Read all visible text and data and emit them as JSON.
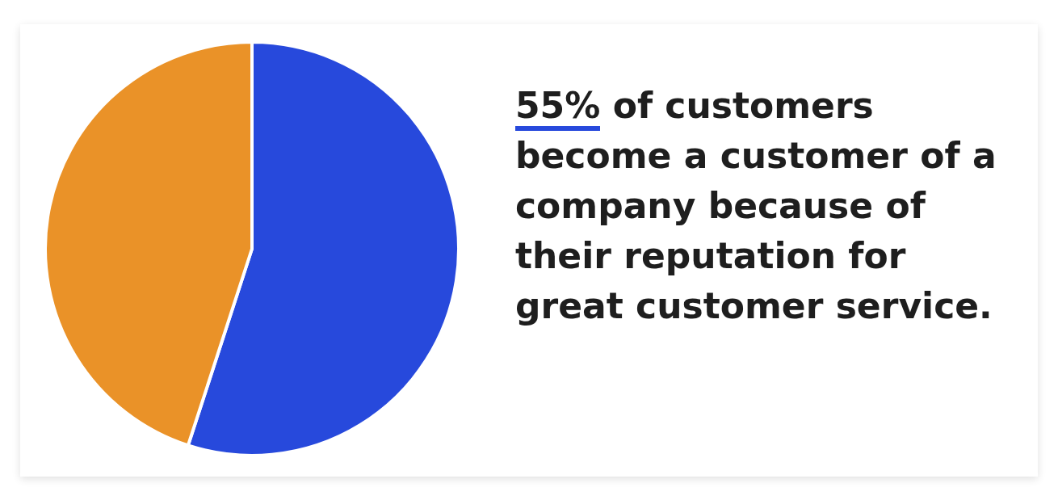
{
  "chart_data": {
    "type": "pie",
    "categories": [
      null,
      null
    ],
    "values": [
      55,
      45
    ],
    "colors": [
      "#2749dc",
      "#ea9228"
    ],
    "legend": false,
    "annotations": [
      "55% of customers become a customer of a company because of their reputation for great customer service."
    ]
  }
}
